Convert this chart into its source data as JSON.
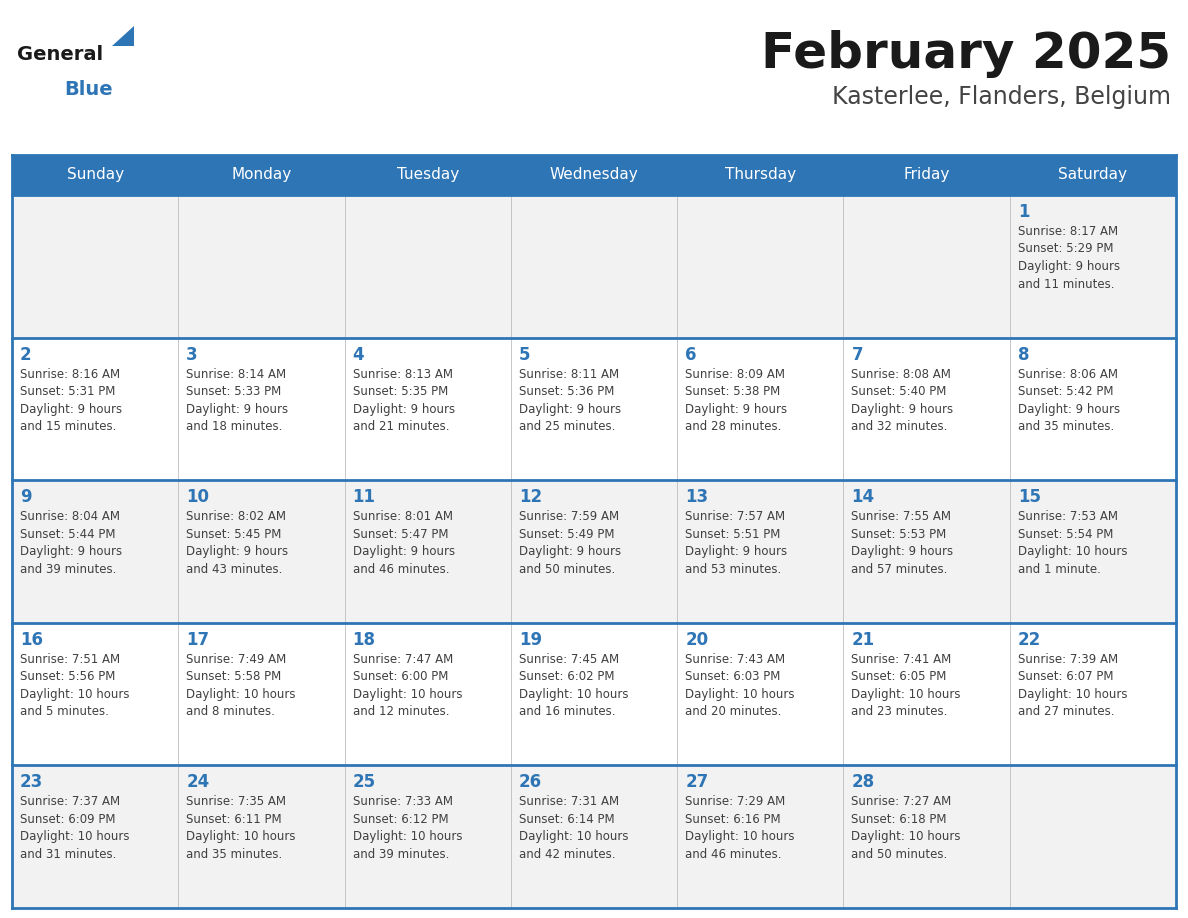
{
  "title": "February 2025",
  "subtitle": "Kasterlee, Flanders, Belgium",
  "days_of_week": [
    "Sunday",
    "Monday",
    "Tuesday",
    "Wednesday",
    "Thursday",
    "Friday",
    "Saturday"
  ],
  "header_bg": "#2E75B6",
  "header_text": "#FFFFFF",
  "cell_bg_odd": "#F2F2F2",
  "cell_bg_even": "#FFFFFF",
  "day_number_color": "#2E75B6",
  "info_text_color": "#404040",
  "divider_color": "#2E75B6",
  "logo_general_color": "#1a1a1a",
  "logo_blue_color": "#2E75B6",
  "calendar": [
    [
      {
        "day": null,
        "info": ""
      },
      {
        "day": null,
        "info": ""
      },
      {
        "day": null,
        "info": ""
      },
      {
        "day": null,
        "info": ""
      },
      {
        "day": null,
        "info": ""
      },
      {
        "day": null,
        "info": ""
      },
      {
        "day": 1,
        "info": "Sunrise: 8:17 AM\nSunset: 5:29 PM\nDaylight: 9 hours\nand 11 minutes."
      }
    ],
    [
      {
        "day": 2,
        "info": "Sunrise: 8:16 AM\nSunset: 5:31 PM\nDaylight: 9 hours\nand 15 minutes."
      },
      {
        "day": 3,
        "info": "Sunrise: 8:14 AM\nSunset: 5:33 PM\nDaylight: 9 hours\nand 18 minutes."
      },
      {
        "day": 4,
        "info": "Sunrise: 8:13 AM\nSunset: 5:35 PM\nDaylight: 9 hours\nand 21 minutes."
      },
      {
        "day": 5,
        "info": "Sunrise: 8:11 AM\nSunset: 5:36 PM\nDaylight: 9 hours\nand 25 minutes."
      },
      {
        "day": 6,
        "info": "Sunrise: 8:09 AM\nSunset: 5:38 PM\nDaylight: 9 hours\nand 28 minutes."
      },
      {
        "day": 7,
        "info": "Sunrise: 8:08 AM\nSunset: 5:40 PM\nDaylight: 9 hours\nand 32 minutes."
      },
      {
        "day": 8,
        "info": "Sunrise: 8:06 AM\nSunset: 5:42 PM\nDaylight: 9 hours\nand 35 minutes."
      }
    ],
    [
      {
        "day": 9,
        "info": "Sunrise: 8:04 AM\nSunset: 5:44 PM\nDaylight: 9 hours\nand 39 minutes."
      },
      {
        "day": 10,
        "info": "Sunrise: 8:02 AM\nSunset: 5:45 PM\nDaylight: 9 hours\nand 43 minutes."
      },
      {
        "day": 11,
        "info": "Sunrise: 8:01 AM\nSunset: 5:47 PM\nDaylight: 9 hours\nand 46 minutes."
      },
      {
        "day": 12,
        "info": "Sunrise: 7:59 AM\nSunset: 5:49 PM\nDaylight: 9 hours\nand 50 minutes."
      },
      {
        "day": 13,
        "info": "Sunrise: 7:57 AM\nSunset: 5:51 PM\nDaylight: 9 hours\nand 53 minutes."
      },
      {
        "day": 14,
        "info": "Sunrise: 7:55 AM\nSunset: 5:53 PM\nDaylight: 9 hours\nand 57 minutes."
      },
      {
        "day": 15,
        "info": "Sunrise: 7:53 AM\nSunset: 5:54 PM\nDaylight: 10 hours\nand 1 minute."
      }
    ],
    [
      {
        "day": 16,
        "info": "Sunrise: 7:51 AM\nSunset: 5:56 PM\nDaylight: 10 hours\nand 5 minutes."
      },
      {
        "day": 17,
        "info": "Sunrise: 7:49 AM\nSunset: 5:58 PM\nDaylight: 10 hours\nand 8 minutes."
      },
      {
        "day": 18,
        "info": "Sunrise: 7:47 AM\nSunset: 6:00 PM\nDaylight: 10 hours\nand 12 minutes."
      },
      {
        "day": 19,
        "info": "Sunrise: 7:45 AM\nSunset: 6:02 PM\nDaylight: 10 hours\nand 16 minutes."
      },
      {
        "day": 20,
        "info": "Sunrise: 7:43 AM\nSunset: 6:03 PM\nDaylight: 10 hours\nand 20 minutes."
      },
      {
        "day": 21,
        "info": "Sunrise: 7:41 AM\nSunset: 6:05 PM\nDaylight: 10 hours\nand 23 minutes."
      },
      {
        "day": 22,
        "info": "Sunrise: 7:39 AM\nSunset: 6:07 PM\nDaylight: 10 hours\nand 27 minutes."
      }
    ],
    [
      {
        "day": 23,
        "info": "Sunrise: 7:37 AM\nSunset: 6:09 PM\nDaylight: 10 hours\nand 31 minutes."
      },
      {
        "day": 24,
        "info": "Sunrise: 7:35 AM\nSunset: 6:11 PM\nDaylight: 10 hours\nand 35 minutes."
      },
      {
        "day": 25,
        "info": "Sunrise: 7:33 AM\nSunset: 6:12 PM\nDaylight: 10 hours\nand 39 minutes."
      },
      {
        "day": 26,
        "info": "Sunrise: 7:31 AM\nSunset: 6:14 PM\nDaylight: 10 hours\nand 42 minutes."
      },
      {
        "day": 27,
        "info": "Sunrise: 7:29 AM\nSunset: 6:16 PM\nDaylight: 10 hours\nand 46 minutes."
      },
      {
        "day": 28,
        "info": "Sunrise: 7:27 AM\nSunset: 6:18 PM\nDaylight: 10 hours\nand 50 minutes."
      },
      {
        "day": null,
        "info": ""
      }
    ]
  ]
}
